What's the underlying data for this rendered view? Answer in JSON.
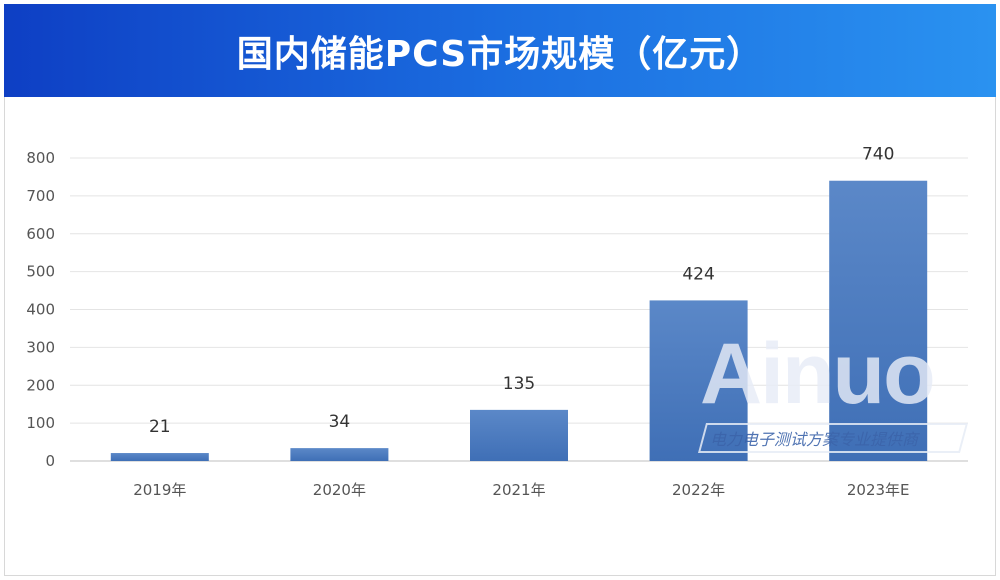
{
  "chart_data": {
    "type": "bar",
    "title": "国内储能PCS市场规模（亿元）",
    "categories": [
      "2019年",
      "2020年",
      "2021年",
      "2022年",
      "2023年E"
    ],
    "values": [
      21,
      34,
      135,
      424,
      740
    ],
    "data_labels": [
      "21",
      "34",
      "135",
      "424",
      "740"
    ],
    "xlabel": "",
    "ylabel": "",
    "ylim": [
      0,
      800
    ],
    "yticks": [
      "0",
      "100",
      "200",
      "300",
      "400",
      "500",
      "600",
      "700",
      "800"
    ],
    "grid": true,
    "legend": "none",
    "colors": {
      "bar": "#4a7ac0",
      "header_start": "#0e3fc4",
      "header_end": "#2a92f0"
    }
  },
  "watermark": {
    "word": "Ainuo",
    "tagline": "电力电子测试方案专业提供商"
  }
}
